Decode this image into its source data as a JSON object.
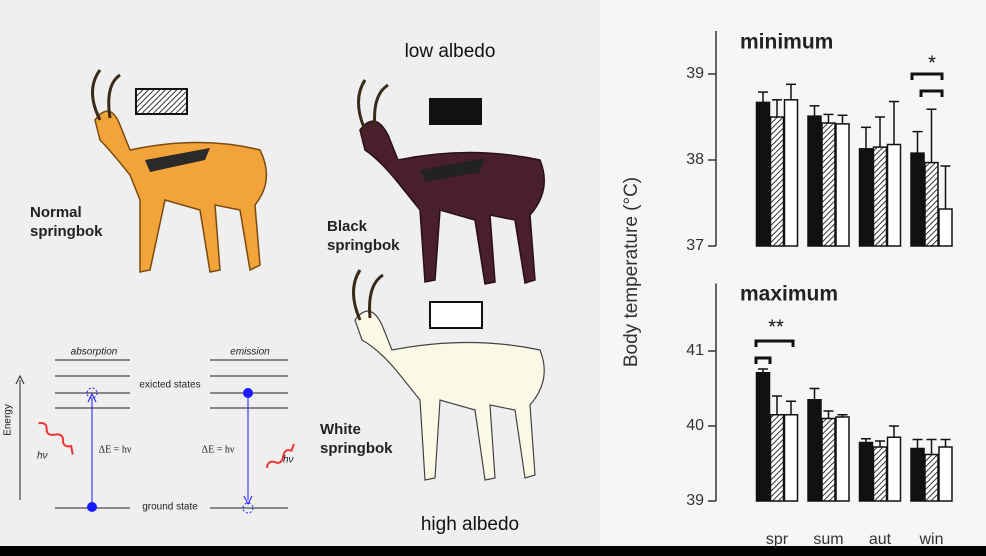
{
  "labels": {
    "low": "low albedo",
    "high": "high albedo",
    "normal": [
      "Normal",
      "springbok"
    ],
    "black": [
      "Black",
      "springbok"
    ],
    "white": [
      "White",
      "springbok"
    ]
  },
  "diagram": {
    "absorption": "absorption",
    "emission": "emission",
    "excited": "exicted states",
    "ground": "ground state",
    "energy": "Energy",
    "delta_left": "ΔE = hν",
    "delta_right": "ΔE = hν",
    "hv_left": "hν",
    "hv_right": "hν"
  },
  "chart_data": [
    {
      "type": "bar",
      "title": "minimum",
      "ylabel": "Body temperature (°C)",
      "categories": [
        null,
        null,
        null,
        null
      ],
      "series": [
        {
          "color": "#111111",
          "values": [
            38.67,
            38.51,
            38.13,
            38.08
          ],
          "errors": [
            0.12,
            0.12,
            0.25,
            0.25
          ]
        },
        {
          "color": "#777777",
          "pattern": "hatch",
          "values": [
            38.5,
            38.43,
            38.15,
            37.97
          ],
          "errors": [
            0.2,
            0.1,
            0.35,
            0.62
          ]
        },
        {
          "color": "#ffffff",
          "values": [
            38.7,
            38.42,
            38.18,
            37.43
          ],
          "errors": [
            0.18,
            0.1,
            0.5,
            0.5
          ]
        }
      ],
      "annotation": "*",
      "ylim": [
        37,
        39.5
      ],
      "yticks": [
        37,
        38,
        39
      ]
    },
    {
      "type": "bar",
      "title": "maximum",
      "categories": [
        "spr",
        "sum",
        "aut",
        "win"
      ],
      "series": [
        {
          "color": "#111111",
          "values": [
            40.71,
            40.35,
            39.78,
            39.7
          ],
          "errors": [
            0.05,
            0.15,
            0.05,
            0.12
          ]
        },
        {
          "color": "#777777",
          "pattern": "hatch",
          "values": [
            40.15,
            40.1,
            39.72,
            39.62
          ],
          "errors": [
            0.25,
            0.1,
            0.08,
            0.2
          ]
        },
        {
          "color": "#ffffff",
          "values": [
            40.15,
            40.12,
            39.85,
            39.72
          ],
          "errors": [
            0.18,
            0.03,
            0.15,
            0.1
          ]
        }
      ],
      "annotation": "**",
      "ylim": [
        39,
        41.9
      ],
      "yticks": [
        39,
        40,
        41
      ]
    }
  ]
}
